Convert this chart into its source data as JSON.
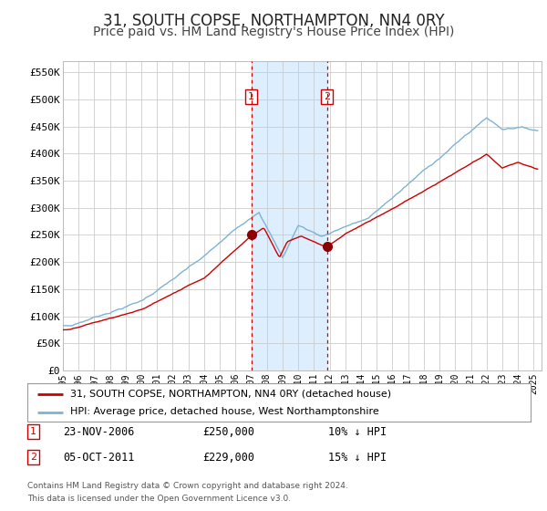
{
  "title": "31, SOUTH COPSE, NORTHAMPTON, NN4 0RY",
  "subtitle": "Price paid vs. HM Land Registry's House Price Index (HPI)",
  "title_fontsize": 12,
  "subtitle_fontsize": 10,
  "ylim": [
    0,
    570000
  ],
  "yticks": [
    0,
    50000,
    100000,
    150000,
    200000,
    250000,
    300000,
    350000,
    400000,
    450000,
    500000,
    550000
  ],
  "ytick_labels": [
    "£0",
    "£50K",
    "£100K",
    "£150K",
    "£200K",
    "£250K",
    "£300K",
    "£350K",
    "£400K",
    "£450K",
    "£500K",
    "£550K"
  ],
  "hpi_color": "#7fb3d3",
  "price_color": "#cc0000",
  "dot_color": "#8b0000",
  "vline_color": "#cc0000",
  "shading_color": "#ddeeff",
  "background_color": "#ffffff",
  "grid_color": "#cccccc",
  "legend_label_price": "31, SOUTH COPSE, NORTHAMPTON, NN4 0RY (detached house)",
  "legend_label_hpi": "HPI: Average price, detached house, West Northamptonshire",
  "transaction1_date": "23-NOV-2006",
  "transaction1_price": 250000,
  "transaction1_pct": "10%",
  "transaction2_date": "05-OCT-2011",
  "transaction2_price": 229000,
  "transaction2_pct": "15%",
  "footnote1": "Contains HM Land Registry data © Crown copyright and database right 2024.",
  "footnote2": "This data is licensed under the Open Government Licence v3.0.",
  "x_start_year": 1995,
  "x_end_year": 2025,
  "transaction1_x": 2007.0,
  "transaction2_x": 2011.83
}
